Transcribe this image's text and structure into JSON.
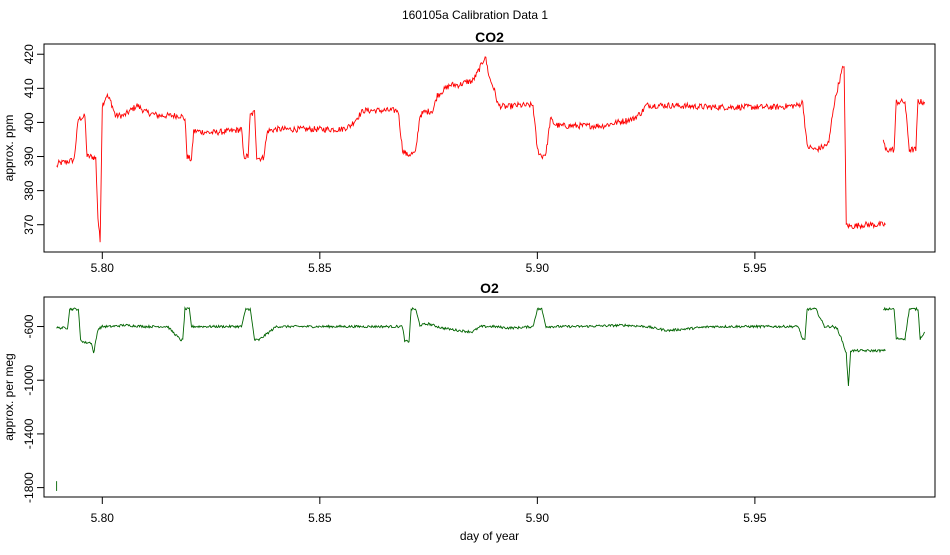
{
  "suptitle": "160105a   Calibration Data 1",
  "colors": {
    "co2": "#ff0000",
    "o2": "#006400",
    "frame": "#000000"
  },
  "chart_data": [
    {
      "type": "line",
      "title": "CO2",
      "xlabel": "",
      "ylabel": "approx. ppm",
      "xlim": [
        5.7866,
        5.9914
      ],
      "ylim": [
        362,
        423
      ],
      "xticks": [
        5.8,
        5.85,
        5.9,
        5.95
      ],
      "xtick_labels": [
        "5.80",
        "5.85",
        "5.90",
        "5.95"
      ],
      "yticks": [
        370,
        380,
        390,
        400,
        410,
        420
      ],
      "ytick_labels": [
        "370",
        "380",
        "390",
        "400",
        "410",
        "420"
      ],
      "grid": false,
      "legend": "none",
      "series": [
        {
          "color": "#ff0000",
          "x": [
            5.7895,
            5.79,
            5.792,
            5.7935,
            5.794,
            5.7945,
            5.7955,
            5.796,
            5.7965,
            5.7975,
            5.7985,
            5.799,
            5.7995,
            5.8,
            5.801,
            5.802,
            5.803,
            5.805,
            5.806,
            5.808,
            5.81,
            5.813,
            5.815,
            5.818,
            5.819,
            5.8195,
            5.8205,
            5.821,
            5.825,
            5.83,
            5.832,
            5.8325,
            5.8335,
            5.834,
            5.835,
            5.8355,
            5.836,
            5.837,
            5.838,
            5.84,
            5.845,
            5.85,
            5.855,
            5.857,
            5.86,
            5.865,
            5.868,
            5.869,
            5.87,
            5.872,
            5.873,
            5.874,
            5.876,
            5.877,
            5.88,
            5.882,
            5.884,
            5.885,
            5.886,
            5.887,
            5.888,
            5.889,
            5.89,
            5.891,
            5.893,
            5.895,
            5.899,
            5.9,
            5.901,
            5.902,
            5.903,
            5.904,
            5.905,
            5.91,
            5.915,
            5.92,
            5.922,
            5.924,
            5.925,
            5.93,
            5.94,
            5.95,
            5.955,
            5.96,
            5.961,
            5.962,
            5.964,
            5.966,
            5.967,
            5.968,
            5.969,
            5.97,
            5.9705,
            5.971,
            5.972,
            5.975,
            5.98
          ],
          "y": [
            387,
            388,
            388.5,
            389,
            395,
            401,
            401.5,
            401.8,
            390,
            390,
            389.5,
            372,
            365,
            405,
            408,
            406,
            402,
            402,
            403,
            405,
            403,
            402,
            402,
            402,
            401,
            390,
            389,
            397.5,
            397,
            397.5,
            398,
            390,
            390,
            402,
            403,
            390,
            389.5,
            389.5,
            397.5,
            398,
            398,
            398,
            398,
            399,
            403.5,
            403.5,
            403.5,
            392,
            390.5,
            391,
            402,
            403,
            403.5,
            408,
            411,
            411,
            412,
            412,
            414,
            416.5,
            419.5,
            413,
            410,
            405,
            404.5,
            405,
            405,
            392,
            390,
            391,
            401,
            399.5,
            399,
            399,
            399,
            400.5,
            401,
            403,
            405,
            405,
            404.5,
            404.5,
            404.5,
            405,
            406,
            393,
            392,
            393,
            394,
            404,
            410,
            415,
            417,
            370,
            369.5,
            370,
            370
          ]
        },
        {
          "color": "#ff0000",
          "x": [
            5.9795,
            5.98,
            5.982,
            5.9825,
            5.983,
            5.9845,
            5.9855,
            5.986,
            5.987,
            5.9875,
            5.988,
            5.989
          ],
          "y": [
            395,
            392,
            392,
            406,
            406,
            406,
            392,
            392,
            392,
            406.5,
            406,
            406
          ]
        }
      ]
    },
    {
      "type": "line",
      "title": "O2",
      "xlabel": "day of year",
      "ylabel": "approx. per meg",
      "xlim": [
        5.7866,
        5.9914
      ],
      "ylim": [
        -1870,
        -380
      ],
      "xticks": [
        5.8,
        5.85,
        5.9,
        5.95
      ],
      "xtick_labels": [
        "5.80",
        "5.85",
        "5.90",
        "5.95"
      ],
      "yticks": [
        -1800,
        -1400,
        -1000,
        -600
      ],
      "ytick_labels": [
        "-1800",
        "-1400",
        "-1000",
        "-600"
      ],
      "grid": false,
      "legend": "none",
      "series": [
        {
          "color": "#006400",
          "x": [
            5.7895,
            5.792,
            5.7925,
            5.793,
            5.7945,
            5.795,
            5.796,
            5.7975,
            5.798,
            5.799,
            5.8,
            5.802,
            5.805,
            5.81,
            5.815,
            5.818,
            5.8185,
            5.819,
            5.82,
            5.8205,
            5.8215,
            5.83,
            5.832,
            5.833,
            5.8335,
            5.834,
            5.835,
            5.836,
            5.84,
            5.85,
            5.86,
            5.868,
            5.869,
            5.8695,
            5.8705,
            5.871,
            5.872,
            5.873,
            5.875,
            5.878,
            5.882,
            5.885,
            5.887,
            5.889,
            5.89,
            5.893,
            5.895,
            5.899,
            5.9,
            5.901,
            5.902,
            5.9025,
            5.903,
            5.904,
            5.905,
            5.91,
            5.92,
            5.925,
            5.93,
            5.94,
            5.95,
            5.96,
            5.961,
            5.9615,
            5.962,
            5.9625,
            5.964,
            5.966,
            5.967,
            5.968,
            5.969,
            5.97,
            5.971,
            5.9715,
            5.972,
            5.975,
            5.98
          ],
          "y": [
            -610,
            -610,
            -470,
            -470,
            -470,
            -700,
            -720,
            -720,
            -800,
            -620,
            -600,
            -600,
            -590,
            -600,
            -600,
            -700,
            -700,
            -470,
            -470,
            -600,
            -600,
            -600,
            -600,
            -470,
            -470,
            -470,
            -700,
            -700,
            -600,
            -600,
            -600,
            -600,
            -600,
            -710,
            -710,
            -470,
            -470,
            -590,
            -580,
            -610,
            -630,
            -640,
            -600,
            -600,
            -600,
            -610,
            -610,
            -600,
            -470,
            -470,
            -600,
            -600,
            -600,
            -600,
            -600,
            -600,
            -590,
            -600,
            -630,
            -600,
            -600,
            -600,
            -700,
            -700,
            -470,
            -470,
            -470,
            -600,
            -600,
            -600,
            -620,
            -700,
            -800,
            -1050,
            -780,
            -780,
            -780
          ]
        },
        {
          "color": "#006400",
          "x": [
            5.9795,
            5.982,
            5.9825,
            5.983,
            5.9845,
            5.9855,
            5.986,
            5.9875,
            5.988,
            5.989
          ],
          "y": [
            -470,
            -470,
            -690,
            -690,
            -690,
            -470,
            -470,
            -470,
            -690,
            -640
          ]
        },
        {
          "color": "#006400",
          "x": [
            5.7895,
            5.7895
          ],
          "y": [
            -1755,
            -1825
          ]
        }
      ]
    }
  ]
}
